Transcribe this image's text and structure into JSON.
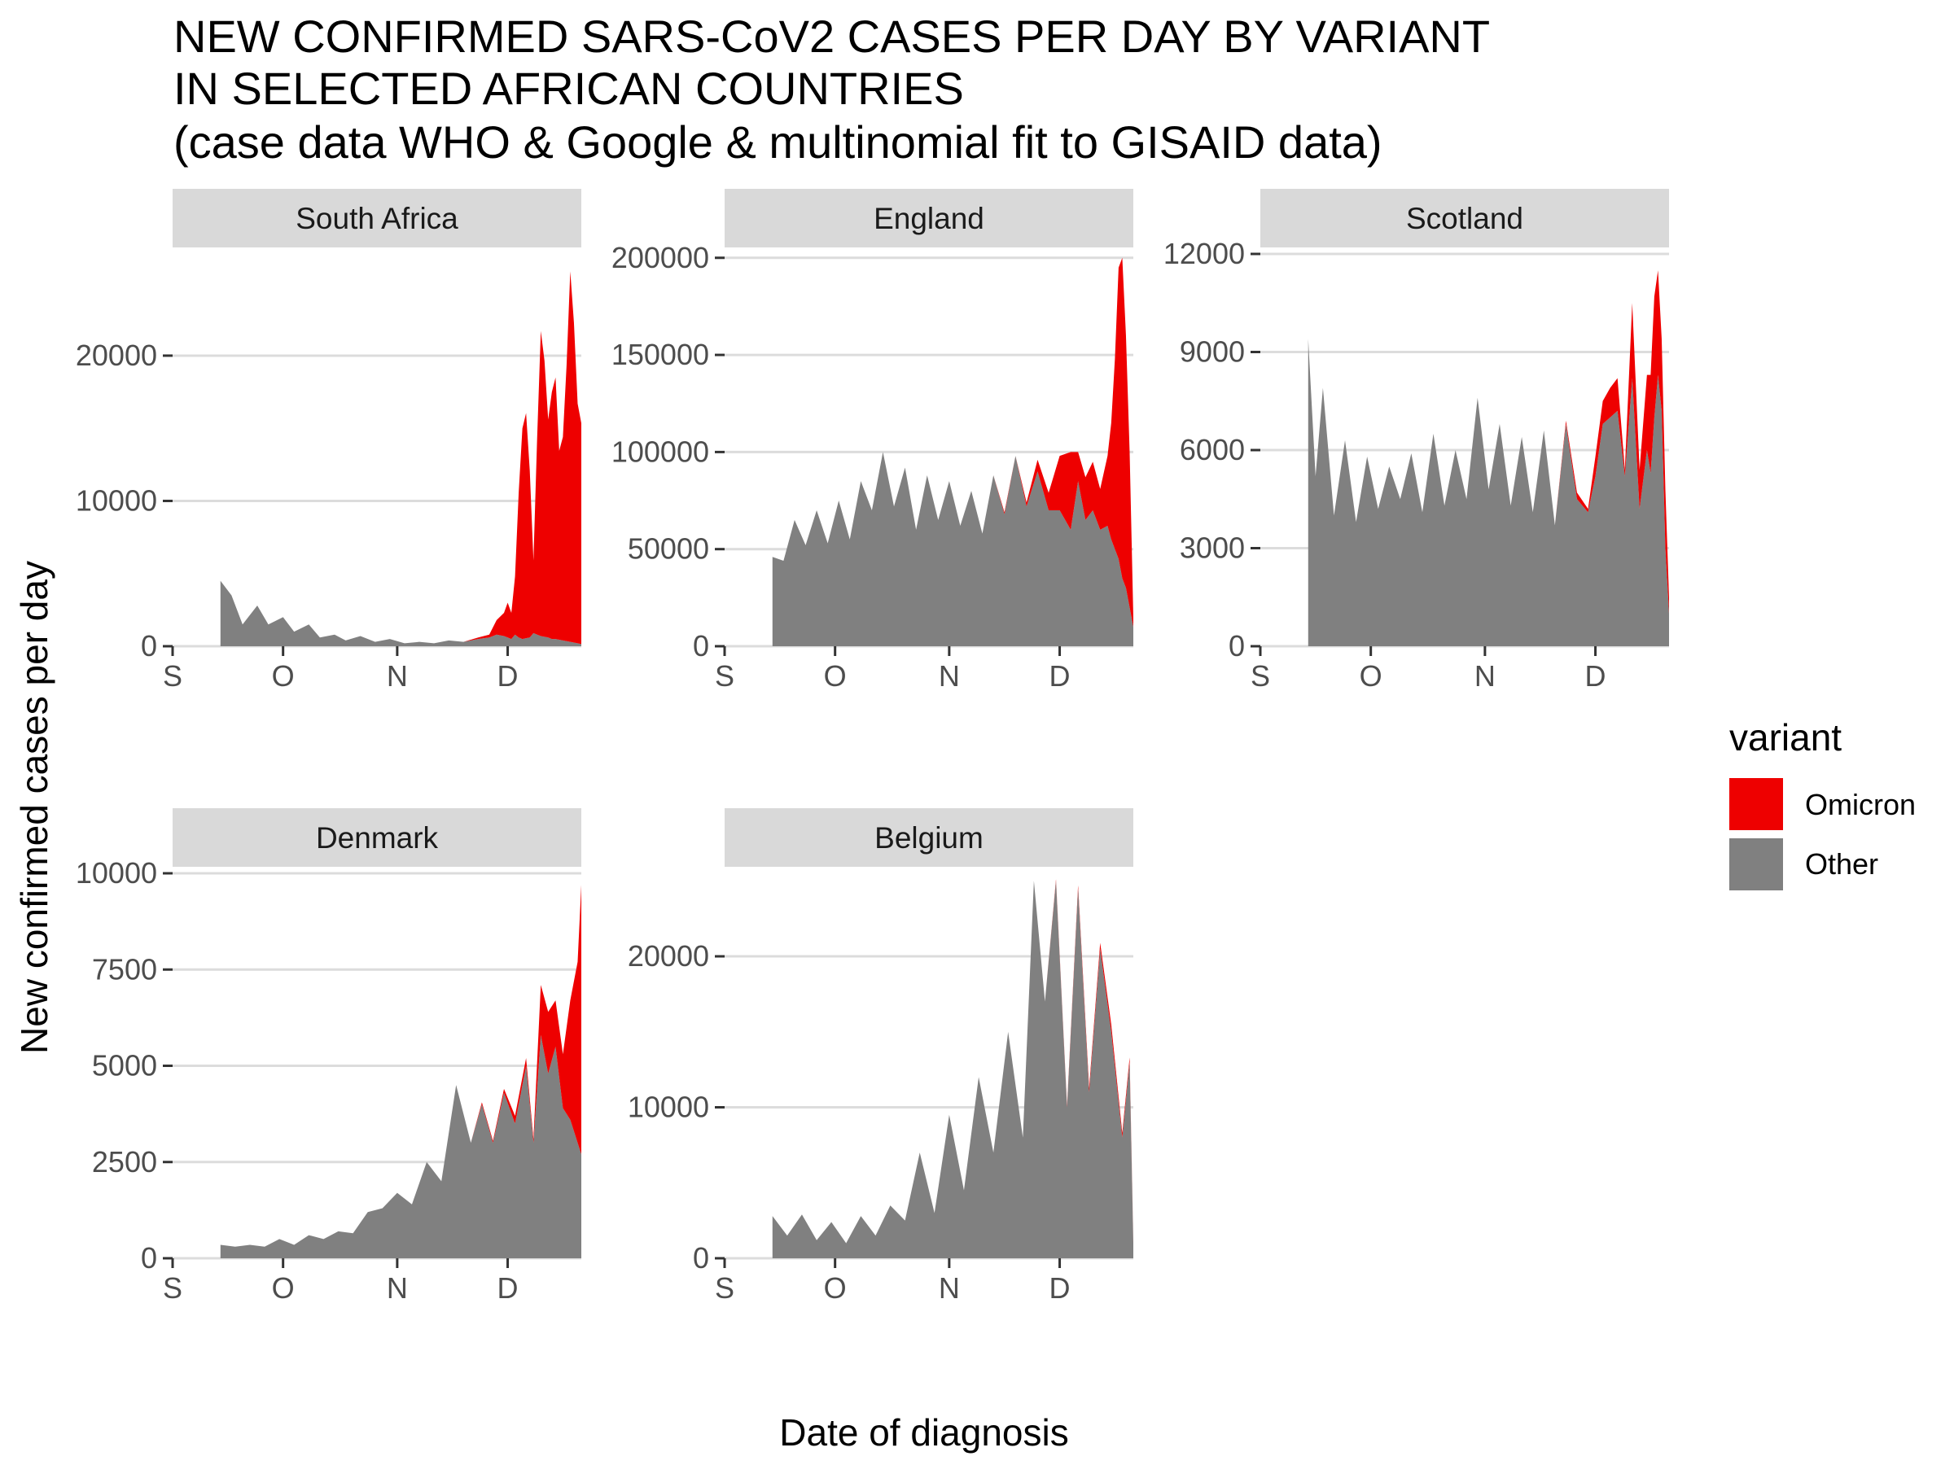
{
  "title_lines": [
    "NEW CONFIRMED SARS-CoV2 CASES PER DAY BY VARIANT",
    "IN SELECTED AFRICAN COUNTRIES",
    "(case data WHO & Google & multinomial fit to GISAID data)"
  ],
  "xlabel": "Date of diagnosis",
  "ylabel": "New confirmed cases per day",
  "legend": {
    "title": "variant",
    "placement": "right",
    "items": [
      {
        "label": "Omicron",
        "color": "#ee0000"
      },
      {
        "label": "Other",
        "color": "#808080"
      }
    ]
  },
  "colors": {
    "Omicron": "#ee0000",
    "Other": "#808080",
    "strip": "#d9d9d9",
    "grid": "#dcdcdc"
  },
  "chart_data": {
    "type": "area",
    "stacked": true,
    "facet_layout": "3 columns x 2 rows",
    "x_axis": {
      "start": "2021-09-01",
      "end": "2021-12-21",
      "ticks": [
        {
          "date": "2021-09-01",
          "label": "S"
        },
        {
          "date": "2021-10-01",
          "label": "O"
        },
        {
          "date": "2021-11-01",
          "label": "N"
        },
        {
          "date": "2021-12-01",
          "label": "D"
        }
      ]
    },
    "grid": "horizontal major",
    "panels": [
      {
        "name": "South Africa",
        "ylim": [
          0,
          27000
        ],
        "yticks": [
          0,
          10000,
          20000
        ],
        "ytick_labels": [
          "0",
          "10000",
          "20000"
        ],
        "dates": [
          "2021-09-14",
          "2021-09-17",
          "2021-09-20",
          "2021-09-24",
          "2021-09-27",
          "2021-10-01",
          "2021-10-04",
          "2021-10-08",
          "2021-10-11",
          "2021-10-15",
          "2021-10-18",
          "2021-10-22",
          "2021-10-26",
          "2021-10-30",
          "2021-11-03",
          "2021-11-07",
          "2021-11-11",
          "2021-11-15",
          "2021-11-19",
          "2021-11-23",
          "2021-11-26",
          "2021-11-28",
          "2021-11-30",
          "2021-12-01",
          "2021-12-02",
          "2021-12-03",
          "2021-12-04",
          "2021-12-05",
          "2021-12-06",
          "2021-12-07",
          "2021-12-08",
          "2021-12-09",
          "2021-12-10",
          "2021-12-11",
          "2021-12-12",
          "2021-12-13",
          "2021-12-14",
          "2021-12-15",
          "2021-12-16",
          "2021-12-17",
          "2021-12-18",
          "2021-12-19",
          "2021-12-20",
          "2021-12-21"
        ],
        "series": [
          {
            "name": "Other",
            "values": [
              4500,
              3500,
              1500,
              2800,
              1500,
              2000,
              1000,
              1500,
              600,
              800,
              400,
              700,
              300,
              500,
              200,
              300,
              200,
              400,
              300,
              500,
              600,
              800,
              700,
              600,
              500,
              800,
              600,
              500,
              550,
              600,
              900,
              800,
              700,
              650,
              600,
              500,
              500,
              450,
              400,
              350,
              300,
              250,
              200,
              150
            ]
          },
          {
            "name": "Omicron",
            "values": [
              0,
              0,
              0,
              0,
              0,
              0,
              0,
              0,
              0,
              0,
              0,
              0,
              0,
              0,
              0,
              0,
              0,
              0,
              0,
              100,
              200,
              1000,
              1600,
              2400,
              1800,
              4000,
              10000,
              14500,
              15500,
              11500,
              5000,
              13500,
              21000,
              19000,
              15000,
              17000,
              18000,
              13000,
              14000,
              19000,
              25500,
              22000,
              16500,
              15200
            ]
          }
        ]
      },
      {
        "name": "England",
        "ylim": [
          0,
          202000
        ],
        "yticks": [
          0,
          50000,
          100000,
          150000,
          200000
        ],
        "ytick_labels": [
          "0",
          "50000",
          "100000",
          "150000",
          "200000"
        ],
        "dates": [
          "2021-09-14",
          "2021-09-17",
          "2021-09-20",
          "2021-09-23",
          "2021-09-26",
          "2021-09-29",
          "2021-10-02",
          "2021-10-05",
          "2021-10-08",
          "2021-10-11",
          "2021-10-14",
          "2021-10-17",
          "2021-10-20",
          "2021-10-23",
          "2021-10-26",
          "2021-10-29",
          "2021-11-01",
          "2021-11-04",
          "2021-11-07",
          "2021-11-10",
          "2021-11-13",
          "2021-11-16",
          "2021-11-19",
          "2021-11-22",
          "2021-11-25",
          "2021-11-28",
          "2021-12-01",
          "2021-12-04",
          "2021-12-06",
          "2021-12-08",
          "2021-12-10",
          "2021-12-12",
          "2021-12-14",
          "2021-12-15",
          "2021-12-16",
          "2021-12-17",
          "2021-12-18",
          "2021-12-19",
          "2021-12-20",
          "2021-12-21"
        ],
        "series": [
          {
            "name": "Other",
            "values": [
              46000,
              44000,
              65000,
              52000,
              70000,
              53000,
              75000,
              55000,
              85000,
              70000,
              100000,
              72000,
              92000,
              60000,
              88000,
              65000,
              85000,
              62000,
              80000,
              58000,
              88000,
              68000,
              98000,
              72000,
              90000,
              70000,
              70000,
              60000,
              85000,
              65000,
              70000,
              60000,
              62000,
              55000,
              50000,
              45000,
              35000,
              30000,
              20000,
              10000
            ]
          },
          {
            "name": "Omicron",
            "values": [
              0,
              0,
              0,
              0,
              0,
              0,
              0,
              0,
              0,
              0,
              0,
              0,
              0,
              0,
              0,
              0,
              0,
              0,
              0,
              0,
              0,
              1000,
              0,
              2000,
              6000,
              9000,
              28000,
              40000,
              15000,
              22000,
              25000,
              21000,
              36000,
              60000,
              98000,
              150000,
              165000,
              130000,
              80000,
              5000
            ]
          }
        ]
      },
      {
        "name": "Scotland",
        "ylim": [
          0,
          12000
        ],
        "yticks": [
          0,
          3000,
          6000,
          9000,
          12000
        ],
        "ytick_labels": [
          "0",
          "3000",
          "6000",
          "9000",
          "12000"
        ],
        "dates": [
          "2021-09-14",
          "2021-09-16",
          "2021-09-18",
          "2021-09-21",
          "2021-09-24",
          "2021-09-27",
          "2021-09-30",
          "2021-10-03",
          "2021-10-06",
          "2021-10-09",
          "2021-10-12",
          "2021-10-15",
          "2021-10-18",
          "2021-10-21",
          "2021-10-24",
          "2021-10-27",
          "2021-10-30",
          "2021-11-02",
          "2021-11-05",
          "2021-11-08",
          "2021-11-11",
          "2021-11-14",
          "2021-11-17",
          "2021-11-20",
          "2021-11-23",
          "2021-11-26",
          "2021-11-29",
          "2021-12-01",
          "2021-12-03",
          "2021-12-05",
          "2021-12-07",
          "2021-12-09",
          "2021-12-11",
          "2021-12-13",
          "2021-12-15",
          "2021-12-16",
          "2021-12-17",
          "2021-12-18",
          "2021-12-19",
          "2021-12-20",
          "2021-12-21"
        ],
        "series": [
          {
            "name": "Other",
            "values": [
              9400,
              5200,
              7900,
              4000,
              6300,
              3800,
              5800,
              4200,
              5500,
              4500,
              5900,
              4100,
              6500,
              4300,
              6000,
              4500,
              7600,
              4800,
              6800,
              4300,
              6400,
              4100,
              6600,
              3700,
              6800,
              4500,
              4100,
              5200,
              6800,
              7000,
              7200,
              5200,
              8200,
              4200,
              6000,
              5300,
              7000,
              8300,
              7200,
              3000,
              1000
            ]
          },
          {
            "name": "Omicron",
            "values": [
              0,
              0,
              0,
              0,
              0,
              0,
              0,
              0,
              0,
              0,
              0,
              0,
              0,
              0,
              0,
              0,
              0,
              0,
              0,
              0,
              0,
              0,
              0,
              0,
              100,
              200,
              100,
              600,
              700,
              900,
              1000,
              200,
              2300,
              1200,
              2300,
              3000,
              3700,
              3200,
              2200,
              1800,
              500
            ]
          }
        ]
      },
      {
        "name": "Denmark",
        "ylim": [
          0,
          10000
        ],
        "yticks": [
          0,
          2500,
          5000,
          7500,
          10000
        ],
        "ytick_labels": [
          "0",
          "2500",
          "5000",
          "7500",
          "10000"
        ],
        "dates": [
          "2021-09-14",
          "2021-09-18",
          "2021-09-22",
          "2021-09-26",
          "2021-09-30",
          "2021-10-04",
          "2021-10-08",
          "2021-10-12",
          "2021-10-16",
          "2021-10-20",
          "2021-10-24",
          "2021-10-28",
          "2021-11-01",
          "2021-11-05",
          "2021-11-09",
          "2021-11-13",
          "2021-11-17",
          "2021-11-21",
          "2021-11-24",
          "2021-11-27",
          "2021-11-30",
          "2021-12-03",
          "2021-12-06",
          "2021-12-08",
          "2021-12-10",
          "2021-12-12",
          "2021-12-14",
          "2021-12-16",
          "2021-12-18",
          "2021-12-20",
          "2021-12-21"
        ],
        "series": [
          {
            "name": "Other",
            "values": [
              350,
              300,
              350,
              300,
              500,
              350,
              600,
              500,
              700,
              650,
              1200,
              1300,
              1700,
              1400,
              2500,
              2000,
              4500,
              3000,
              4000,
              3000,
              4300,
              3500,
              5000,
              3000,
              5800,
              4800,
              5500,
              3900,
              3600,
              3000,
              2700
            ]
          },
          {
            "name": "Omicron",
            "values": [
              0,
              0,
              0,
              0,
              0,
              0,
              0,
              0,
              0,
              0,
              0,
              0,
              0,
              0,
              0,
              0,
              0,
              0,
              50,
              50,
              100,
              200,
              200,
              100,
              1300,
              1600,
              1200,
              1400,
              3100,
              4700,
              7000
            ]
          }
        ]
      },
      {
        "name": "Belgium",
        "ylim": [
          0,
          25500
        ],
        "yticks": [
          0,
          10000,
          20000
        ],
        "ytick_labels": [
          "0",
          "10000",
          "20000"
        ],
        "dates": [
          "2021-09-14",
          "2021-09-18",
          "2021-09-22",
          "2021-09-26",
          "2021-09-30",
          "2021-10-04",
          "2021-10-08",
          "2021-10-12",
          "2021-10-16",
          "2021-10-20",
          "2021-10-24",
          "2021-10-28",
          "2021-11-01",
          "2021-11-05",
          "2021-11-09",
          "2021-11-13",
          "2021-11-17",
          "2021-11-21",
          "2021-11-24",
          "2021-11-27",
          "2021-11-30",
          "2021-12-03",
          "2021-12-06",
          "2021-12-09",
          "2021-12-12",
          "2021-12-15",
          "2021-12-18",
          "2021-12-20",
          "2021-12-21"
        ],
        "series": [
          {
            "name": "Other",
            "values": [
              2800,
              1500,
              2900,
              1200,
              2400,
              1000,
              2800,
              1500,
              3500,
              2500,
              7000,
              3000,
              9500,
              4500,
              12000,
              7000,
              15000,
              8000,
              25000,
              17000,
              25000,
              10000,
              24500,
              11000,
              20500,
              15000,
              8000,
              13000,
              1000
            ]
          },
          {
            "name": "Omicron",
            "values": [
              0,
              0,
              0,
              0,
              0,
              0,
              0,
              0,
              0,
              0,
              0,
              0,
              0,
              0,
              0,
              0,
              0,
              0,
              0,
              0,
              100,
              100,
              200,
              300,
              400,
              500,
              300,
              300,
              100
            ]
          }
        ]
      }
    ]
  }
}
